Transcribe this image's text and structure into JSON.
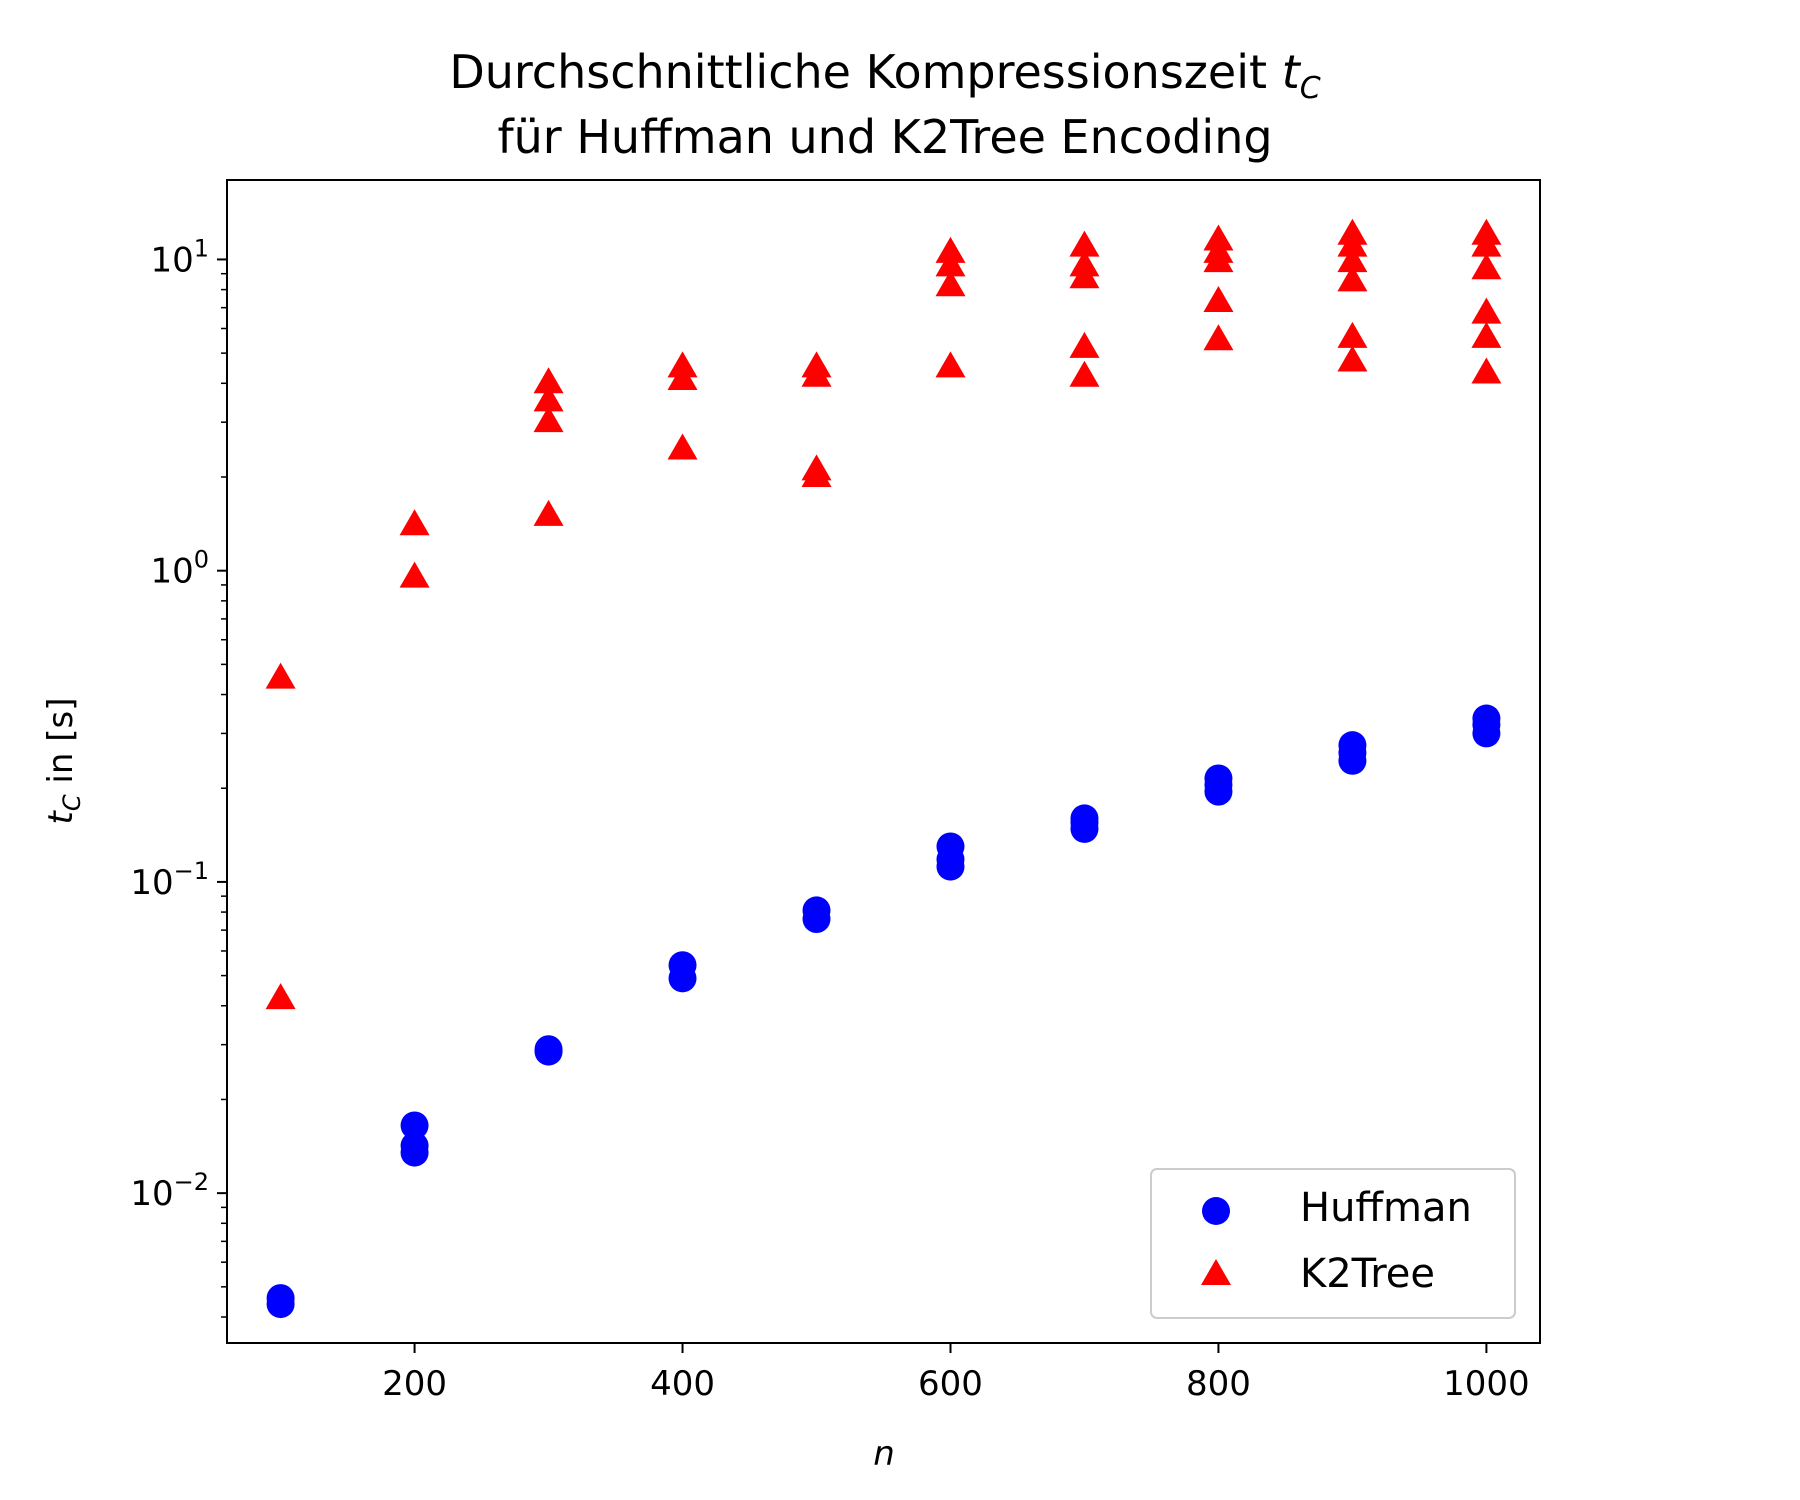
{
  "chart_data": {
    "type": "scatter",
    "title_line1": "Durchschnittliche Kompressionszeit",
    "title_line1_math": "t",
    "title_line1_sub": "C",
    "title_line2": "für Huffman und K2Tree Encoding",
    "xlabel": "n",
    "ylabel_math": "t",
    "ylabel_sub": "C",
    "ylabel_rest": " in [s]",
    "xlim": [
      60,
      1040
    ],
    "ylim": [
      0.0033,
      18
    ],
    "yscale": "log",
    "xticks": [
      200,
      400,
      600,
      800,
      1000
    ],
    "ytick_exponents": [
      -2,
      -1,
      0,
      1
    ],
    "ytick_base": "10",
    "legend_position": "lower right",
    "series": [
      {
        "name": "Huffman",
        "marker": "circle",
        "color": "#0000ff",
        "points": [
          [
            100,
            0.0044
          ],
          [
            100,
            0.0046
          ],
          [
            200,
            0.0135
          ],
          [
            200,
            0.0142
          ],
          [
            200,
            0.0165
          ],
          [
            300,
            0.0285
          ],
          [
            300,
            0.029
          ],
          [
            400,
            0.049
          ],
          [
            400,
            0.054
          ],
          [
            500,
            0.076
          ],
          [
            500,
            0.081
          ],
          [
            600,
            0.112
          ],
          [
            600,
            0.118
          ],
          [
            600,
            0.13
          ],
          [
            700,
            0.148
          ],
          [
            700,
            0.155
          ],
          [
            700,
            0.16
          ],
          [
            800,
            0.195
          ],
          [
            800,
            0.205
          ],
          [
            800,
            0.215
          ],
          [
            900,
            0.245
          ],
          [
            900,
            0.26
          ],
          [
            900,
            0.275
          ],
          [
            1000,
            0.3
          ],
          [
            1000,
            0.32
          ],
          [
            1000,
            0.335
          ]
        ]
      },
      {
        "name": "K2Tree",
        "marker": "triangle",
        "color": "#ff0000",
        "points": [
          [
            100,
            0.042
          ],
          [
            100,
            0.45
          ],
          [
            200,
            0.95
          ],
          [
            200,
            1.4
          ],
          [
            300,
            1.5
          ],
          [
            300,
            3.0
          ],
          [
            300,
            3.5
          ],
          [
            300,
            4.0
          ],
          [
            400,
            2.45
          ],
          [
            400,
            4.1
          ],
          [
            400,
            4.5
          ],
          [
            500,
            2.0
          ],
          [
            500,
            2.1
          ],
          [
            500,
            4.2
          ],
          [
            500,
            4.5
          ],
          [
            600,
            4.5
          ],
          [
            600,
            8.2
          ],
          [
            600,
            9.5
          ],
          [
            600,
            10.5
          ],
          [
            700,
            4.2
          ],
          [
            700,
            5.2
          ],
          [
            700,
            8.7
          ],
          [
            700,
            9.5
          ],
          [
            700,
            11.0
          ],
          [
            800,
            5.5
          ],
          [
            800,
            7.3
          ],
          [
            800,
            9.8
          ],
          [
            800,
            10.5
          ],
          [
            800,
            11.5
          ],
          [
            900,
            4.7
          ],
          [
            900,
            5.6
          ],
          [
            900,
            8.5
          ],
          [
            900,
            9.8
          ],
          [
            900,
            11.0
          ],
          [
            900,
            12.0
          ],
          [
            1000,
            4.3
          ],
          [
            1000,
            5.6
          ],
          [
            1000,
            6.7
          ],
          [
            1000,
            9.3
          ],
          [
            1000,
            11.0
          ],
          [
            1000,
            12.0
          ]
        ]
      }
    ]
  }
}
